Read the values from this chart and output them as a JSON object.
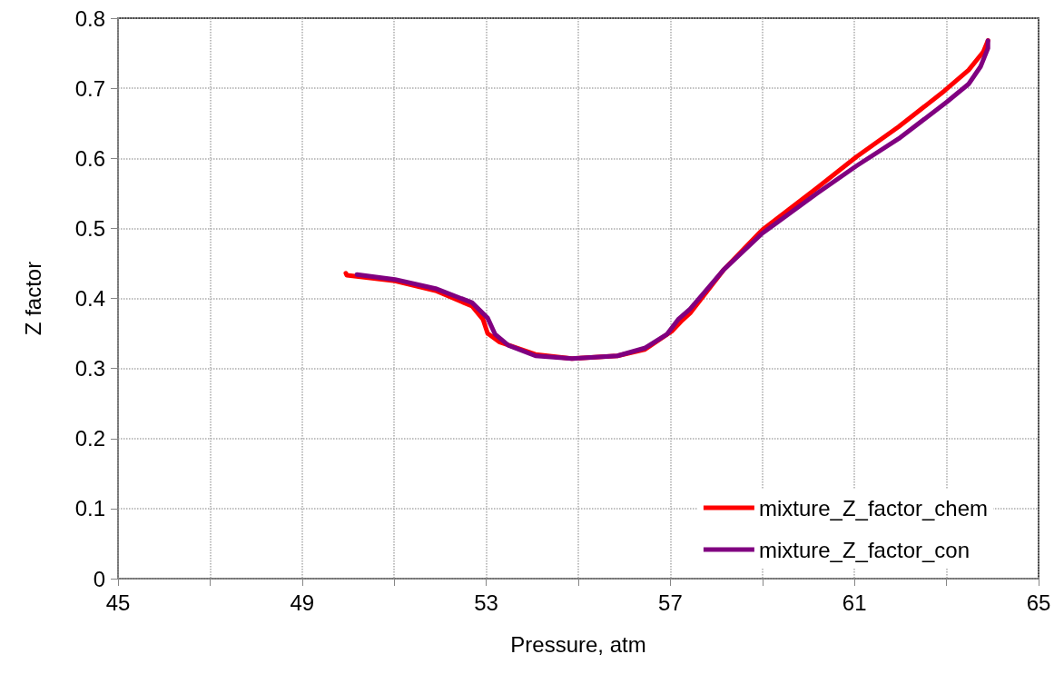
{
  "chart_data": {
    "type": "line",
    "xlabel": "Pressure, atm",
    "ylabel": "Z factor",
    "xlim": [
      45,
      65
    ],
    "xticks": [
      45,
      {
        "value": 47,
        "label": null
      },
      49,
      {
        "value": 51,
        "label": null
      },
      53,
      {
        "value": 55,
        "label": null
      },
      57,
      {
        "value": 59,
        "label": null
      },
      61,
      {
        "value": 63,
        "label": null
      },
      65
    ],
    "ylim": [
      0,
      0.8
    ],
    "yticks": [
      0,
      0.1,
      0.2,
      0.3,
      0.4,
      0.5,
      0.6,
      0.7,
      0.8
    ],
    "grid": true,
    "legend": "bottom right",
    "marker": "none",
    "line_style": "solid",
    "series": [
      {
        "name": "mixture_Z_factor_chem",
        "color": "#ff0000",
        "x": [
          49.95,
          49.97,
          51.02,
          51.9,
          52.69,
          52.93,
          53.03,
          53.28,
          54.07,
          54.86,
          55.85,
          56.44,
          57.03,
          57.23,
          57.43,
          58.16,
          59.0,
          60.19,
          61.04,
          61.96,
          62.95,
          63.48,
          63.8,
          63.9
        ],
        "values": [
          0.436,
          0.433,
          0.425,
          0.411,
          0.389,
          0.37,
          0.35,
          0.338,
          0.32,
          0.314,
          0.318,
          0.327,
          0.353,
          0.367,
          0.379,
          0.441,
          0.498,
          0.558,
          0.602,
          0.645,
          0.696,
          0.726,
          0.752,
          0.768
        ]
      },
      {
        "name": "mixture_Z_factor_con",
        "color": "#800080",
        "x": [
          50.19,
          51.02,
          51.9,
          52.69,
          53.03,
          53.19,
          53.48,
          54.07,
          54.86,
          55.85,
          56.44,
          56.93,
          57.17,
          57.43,
          58.16,
          59.0,
          60.19,
          61.04,
          61.96,
          63.0,
          63.48,
          63.74,
          63.9,
          63.9
        ],
        "values": [
          0.434,
          0.427,
          0.414,
          0.394,
          0.372,
          0.349,
          0.333,
          0.318,
          0.314,
          0.318,
          0.329,
          0.349,
          0.37,
          0.385,
          0.441,
          0.493,
          0.55,
          0.589,
          0.628,
          0.68,
          0.706,
          0.731,
          0.757,
          0.768
        ]
      }
    ]
  }
}
